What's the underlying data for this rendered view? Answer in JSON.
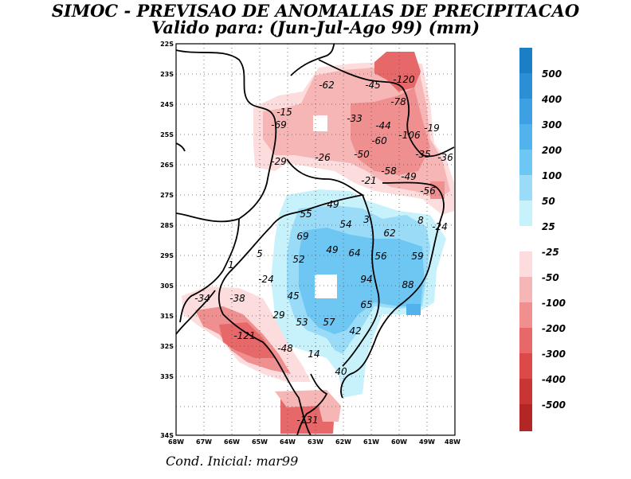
{
  "header": {
    "title": "SIMOC - PREVISAO DE ANOMALIAS DE PRECIPITACAO",
    "subtitle": "Valido para: (Jun-Jul-Ago 99) (mm)"
  },
  "footer": {
    "initial_condition": "Cond. Inicial: mar99"
  },
  "map": {
    "lat_labels": [
      "22S",
      "23S",
      "24S",
      "25S",
      "26S",
      "27S",
      "28S",
      "29S",
      "30S",
      "31S",
      "32S",
      "33S",
      "34S"
    ],
    "lon_labels": [
      "68W",
      "67W",
      "66W",
      "65W",
      "64W",
      "63W",
      "62W",
      "61W",
      "60W",
      "49W",
      "48W"
    ],
    "contour_labels": [
      "-62",
      "-45",
      "-120",
      "-78",
      "-15",
      "-69",
      "-33",
      "-44",
      "-106",
      "-19",
      "-60",
      "-50",
      "-26",
      "-35",
      "-36",
      "-29",
      "-58",
      "-49",
      "-21",
      "-56",
      "49",
      "55",
      "3",
      "54",
      "8",
      "-24",
      "69",
      "62",
      "5",
      "52",
      "49",
      "64",
      "56",
      "59",
      "1",
      "-24",
      "94",
      "88",
      "-34",
      "-38",
      "45",
      "65",
      "29",
      "53",
      "57",
      "42",
      "-121",
      "-48",
      "14",
      "40",
      "-131"
    ]
  },
  "legend": {
    "positive_labels": [
      "500",
      "400",
      "300",
      "200",
      "100",
      "50",
      "25"
    ],
    "negative_labels": [
      "-25",
      "-50",
      "-100",
      "-200",
      "-300",
      "-400",
      "-500"
    ],
    "positive_colors": [
      "#1a7fc6",
      "#2b8fd6",
      "#3da0e2",
      "#52b3ec",
      "#6ec6f2",
      "#9adcf8",
      "#c8f2fb"
    ],
    "negative_colors": [
      "#fcdcdc",
      "#f6b6b6",
      "#ef8f8f",
      "#e66868",
      "#db4949",
      "#c93434",
      "#b22626"
    ]
  }
}
